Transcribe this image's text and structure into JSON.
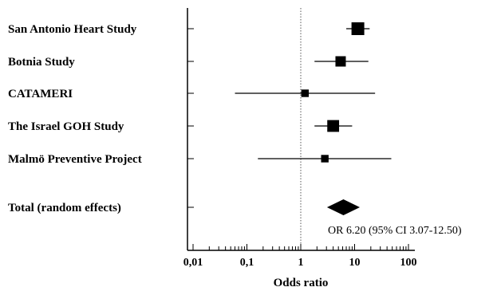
{
  "chart_data": {
    "type": "forest",
    "xlabel": "Odds ratio",
    "xscale": "log",
    "xlim": [
      0.01,
      100
    ],
    "x_tick_labels": [
      {
        "value": 0.01,
        "label": "0,01"
      },
      {
        "value": 0.1,
        "label": "0,1"
      },
      {
        "value": 1,
        "label": "1"
      },
      {
        "value": 10,
        "label": "10"
      },
      {
        "value": 100,
        "label": "100"
      }
    ],
    "reference_line": 1,
    "studies": [
      {
        "name": "San Antonio Heart Study",
        "or": 11.5,
        "ci_low": 7.0,
        "ci_high": 19.0,
        "weight": 1.0
      },
      {
        "name": "Botnia Study",
        "or": 5.5,
        "ci_low": 1.8,
        "ci_high": 18.0,
        "weight": 0.75
      },
      {
        "name": "CATAMERI",
        "or": 1.2,
        "ci_low": 0.06,
        "ci_high": 24.0,
        "weight": 0.45
      },
      {
        "name": "The Israel GOH Study",
        "or": 4.0,
        "ci_low": 1.8,
        "ci_high": 9.0,
        "weight": 0.9
      },
      {
        "name": "Malmö Preventive Project",
        "or": 2.8,
        "ci_low": 0.16,
        "ci_high": 48.0,
        "weight": 0.45
      }
    ],
    "summary": {
      "name": "Total (random effects)",
      "or": 6.2,
      "ci_low": 3.07,
      "ci_high": 12.5,
      "text": "OR  6.20 (95% CI 3.07-12.50)"
    }
  }
}
